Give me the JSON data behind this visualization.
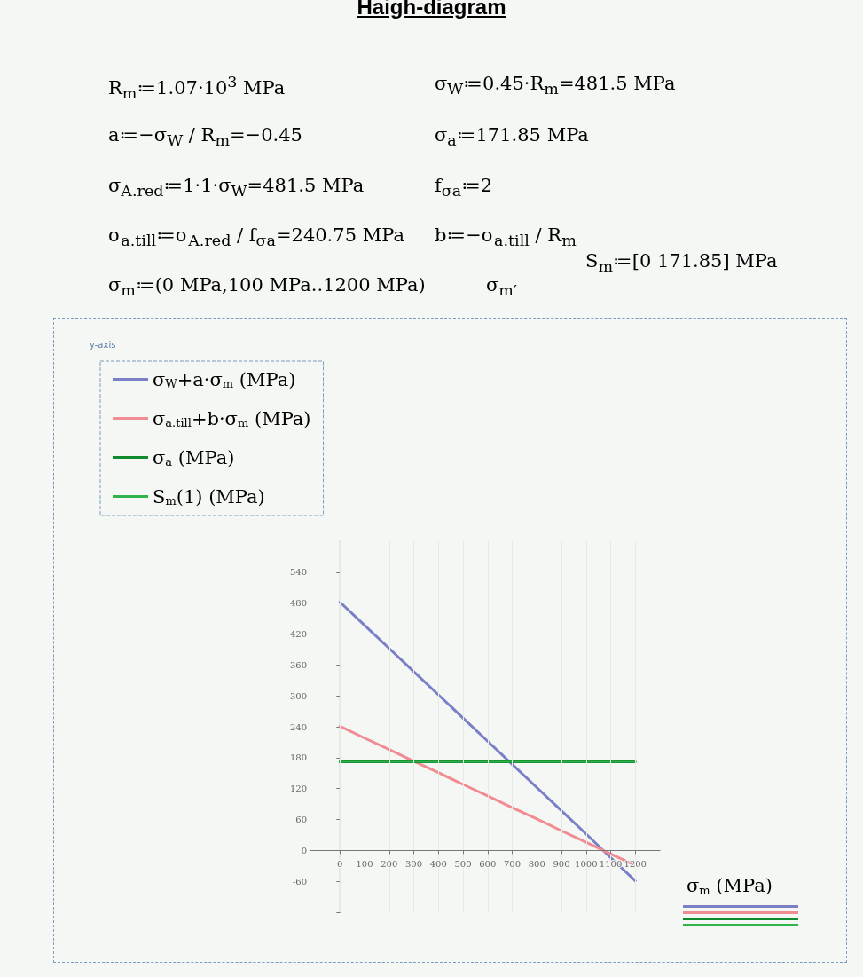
{
  "chart_data": {
    "type": "line",
    "title": "Haigh-diagram",
    "annotations": [
      "R$_{m}$≔1.07·10$^{3}$ MPa",
      "σ$_{W}$≔0.45·R$_{m}$=481.5 MPa",
      "a≔−σ$_{W}$ / R$_{m}$=−0.45",
      "σ$_{a}$≔171.85 MPa",
      "σ$_{A.red}$≔1·1·σ$_{W}$=481.5 MPa",
      "f$_{σa}$≔2",
      "σ$_{a.till}$≔σ$_{A.red}$ / f$_{σa}$=240.75 MPa",
      "b≔−σ$_{a.till}$ / R$_{m}$",
      "S$_{m}$≔[0 171.85] MPa",
      "σ$_{m}$≔(0 MPa,100 MPa..1200 MPa)",
      "σ$_{m′}$",
      "y-axis"
    ],
    "xlabel": "σ$_{m}$ (MPa)",
    "x": [
      0,
      100,
      200,
      300,
      400,
      500,
      600,
      700,
      800,
      900,
      1000,
      1100,
      1200
    ],
    "series": [
      {
        "name": "σ$_{W}$+a·σ$_{m}$ (MPa)",
        "color": "#7b7fc6",
        "values": [
          482,
          437,
          392,
          347,
          302,
          257,
          212,
          167,
          122,
          77,
          32,
          -14,
          -59
        ]
      },
      {
        "name": "σ$_{a.till}$+b·σ$_{m}$ (MPa)",
        "color": "#f08c92",
        "values": [
          241,
          218,
          196,
          173,
          151,
          128,
          106,
          83,
          61,
          38,
          16,
          -7,
          -29
        ]
      },
      {
        "name": "σ$_{a}$ (MPa)",
        "color": "#118a2c",
        "values": [
          172,
          172,
          172,
          172,
          172,
          172,
          172,
          172,
          172,
          172,
          172,
          172,
          172
        ]
      },
      {
        "name": "S$_{m}$(1) (MPa)",
        "color": "#2fb34a",
        "values": [
          172,
          172,
          172,
          172,
          172,
          172,
          172,
          172,
          172,
          172,
          172,
          172,
          172
        ]
      }
    ],
    "xlim": [
      -120,
      1300
    ],
    "xticks": [
      0,
      100,
      200,
      300,
      400,
      500,
      600,
      700,
      800,
      900,
      1000,
      1100,
      1200
    ],
    "ylim": [
      -120,
      600
    ],
    "yticks": [
      {
        "value": -120,
        "label": null
      },
      -60,
      0,
      60,
      120,
      180,
      240,
      300,
      360,
      420,
      480,
      540
    ],
    "grid": "x",
    "legend": "top left",
    "marker": "none",
    "line_style": "solid"
  }
}
